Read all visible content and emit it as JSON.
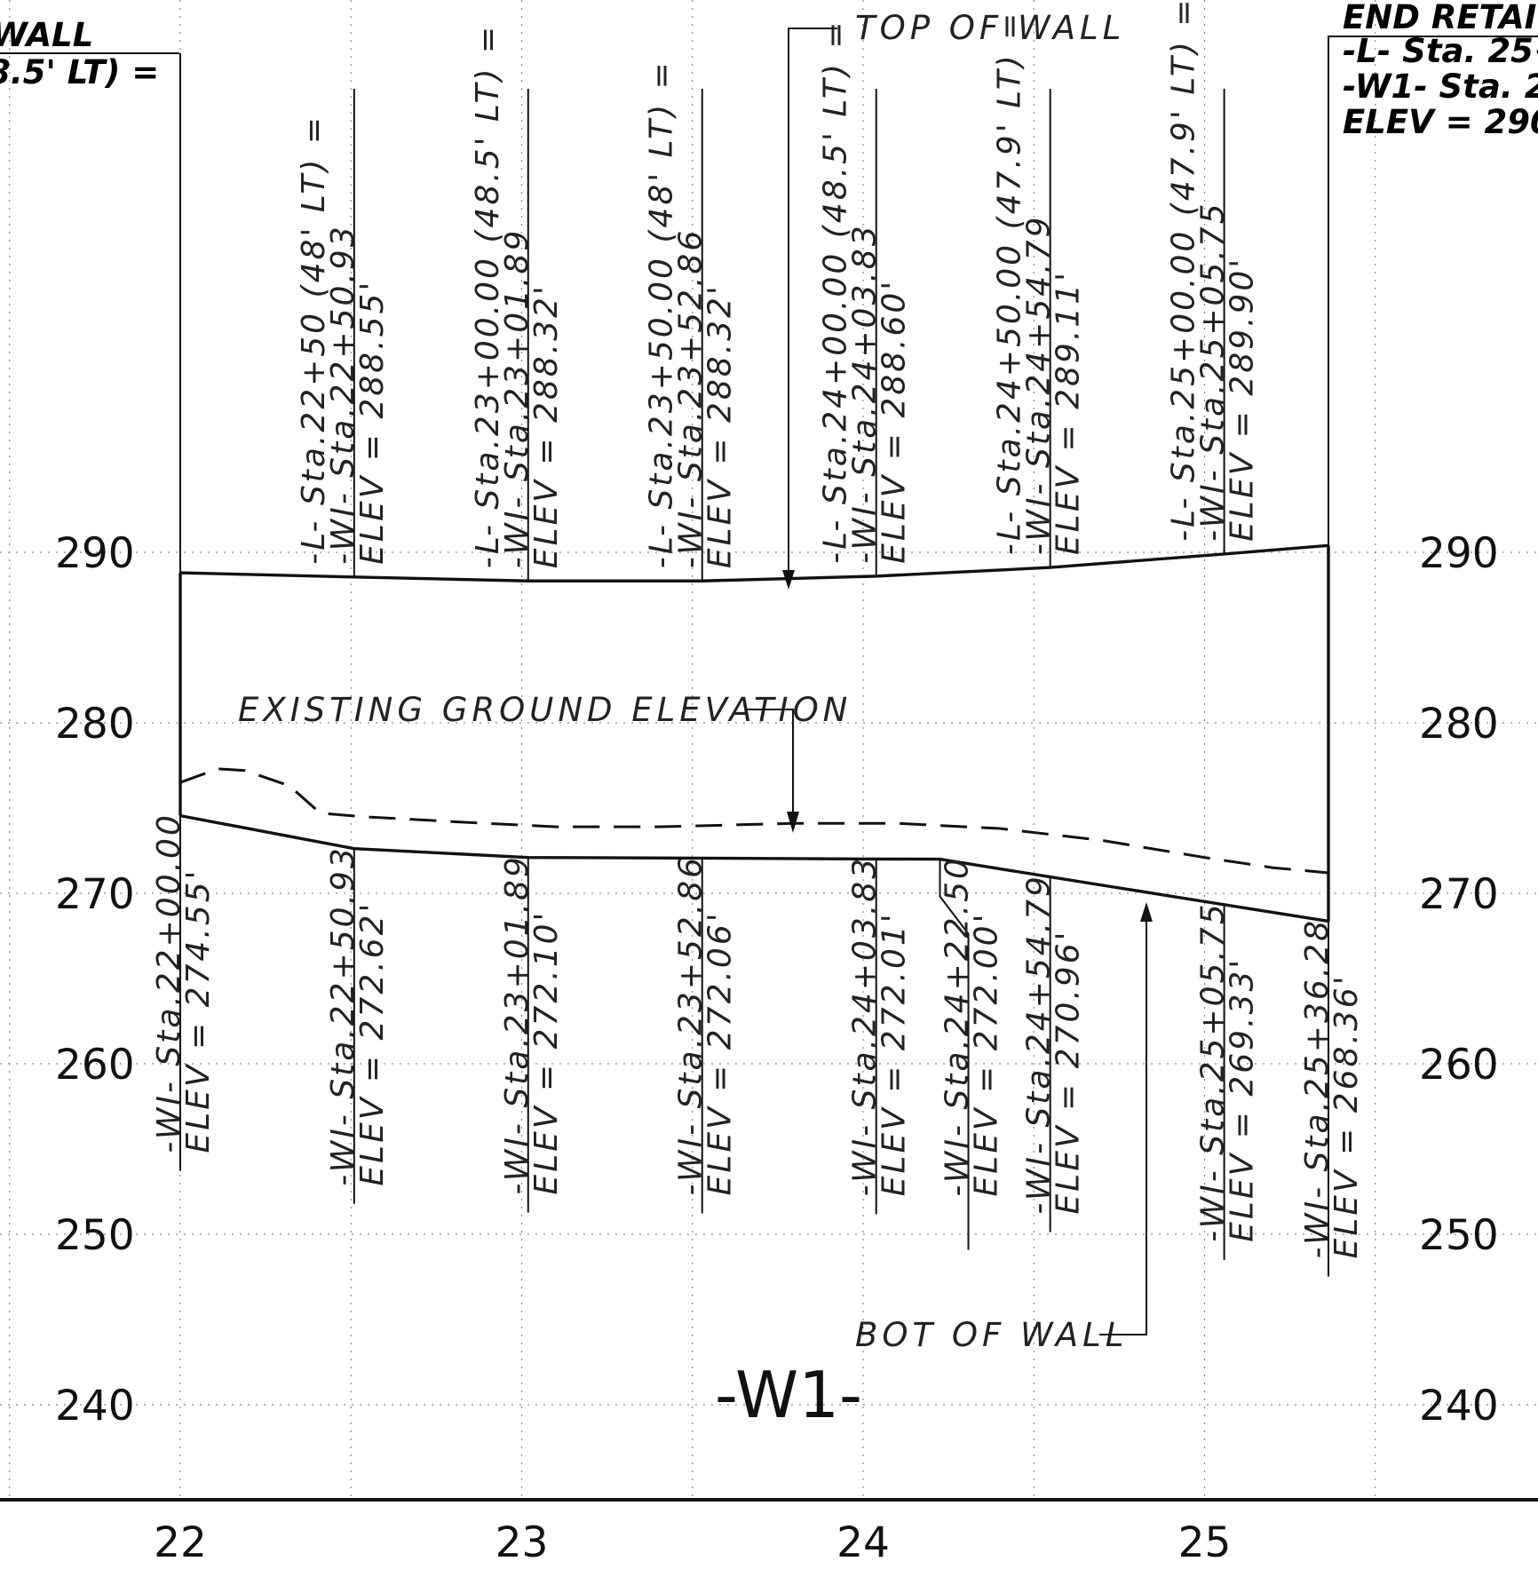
{
  "elevation_axis": {
    "labels": [
      "290",
      "280",
      "270",
      "260",
      "250",
      "240"
    ],
    "values": [
      290,
      280,
      270,
      260,
      250,
      240
    ]
  },
  "station_axis": {
    "labels": [
      "22",
      "23",
      "24",
      "25"
    ],
    "values": [
      22,
      23,
      24,
      25
    ]
  },
  "alignment_label": "-W1-",
  "notes": {
    "top_of_wall": "TOP OF WALL",
    "existing_ground": "EXISTING GROUND ELEVATION",
    "bot_of_wall": "BOT OF WALL"
  },
  "begin_wall": {
    "line1": "WALL",
    "line2": "8.5' LT) ="
  },
  "end_wall": {
    "line1": "END RETAI",
    "line2": "-L- Sta. 25+",
    "line3": "-W1- Sta. 2",
    "line4": "ELEV = 290"
  },
  "top_labels": [
    {
      "l": "-L-  Sta.22+50 (48' LT) =",
      "w": "-WI-  Sta.22+50.93",
      "e": "ELEV  =  288.55'"
    },
    {
      "l": "-L-  Sta.23+00.00 (48.5' LT) =",
      "w": "-WI-  Sta.23+01.89",
      "e": "ELEV  =  288.32'"
    },
    {
      "l": "-L-  Sta.23+50.00 (48' LT) =",
      "w": "-WI-  Sta.23+52.86",
      "e": "ELEV  =  288.32'"
    },
    {
      "l": "-L-  Sta.24+00.00 (48.5' LT) =",
      "w": "-WI-  Sta.24+03.83",
      "e": "ELEV  =  288.60'"
    },
    {
      "l": "-L-  Sta.24+50.00 (47.9' LT) =",
      "w": "-WI-  Sta.24+54.79",
      "e": "ELEV  =  289.11'"
    },
    {
      "l": "-L-  Sta.25+00.00 (47.9' LT) =",
      "w": "-WI-  Sta.25+05.75",
      "e": "ELEV  =  289.90'"
    }
  ],
  "bottom_labels": [
    {
      "w": "-WI-  Sta.22+00.00",
      "e": "ELEV  =  274.55'"
    },
    {
      "w": "-WI-  Sta.22+50.93",
      "e": "ELEV  =  272.62'"
    },
    {
      "w": "-WI-  Sta.23+01.89",
      "e": "ELEV  =  272.10'"
    },
    {
      "w": "-WI-  Sta.23+52.86",
      "e": "ELEV  =  272.06'"
    },
    {
      "w": "-WI-  Sta.24+03.83",
      "e": "ELEV  =  272.01'"
    },
    {
      "w": "-WI-  Sta.24+22.50",
      "e": "ELEV  =  272.00'"
    },
    {
      "w": "-WI-  Sta.24+54.79",
      "e": "ELEV  =  270.96'"
    },
    {
      "w": "-WI-  Sta.25+05.75",
      "e": "ELEV  =  269.33'"
    },
    {
      "w": "-WI-  Sta.25+36.28",
      "e": "ELEV  =  268.36'"
    }
  ],
  "chart_data": {
    "type": "line",
    "x_axis_unit": "station (100 ft)",
    "y_axis_unit": "elevation (ft)",
    "xlim": [
      21.47,
      25.9
    ],
    "ylim": [
      235.5,
      298
    ],
    "grid": true,
    "series": [
      {
        "name": "TOP OF WALL",
        "x": [
          22.0,
          22.5093,
          23.0189,
          23.5286,
          24.0383,
          24.5479,
          25.0575,
          25.3628
        ],
        "y": [
          288.8,
          288.55,
          288.32,
          288.32,
          288.6,
          289.11,
          289.9,
          290.4
        ]
      },
      {
        "name": "BOT OF WALL",
        "x": [
          22.0,
          22.5093,
          23.0189,
          23.5286,
          24.0383,
          24.225,
          24.5479,
          25.0575,
          25.3628
        ],
        "y": [
          274.55,
          272.62,
          272.1,
          272.06,
          272.01,
          272.0,
          270.96,
          269.33,
          268.36
        ]
      },
      {
        "name": "EXISTING GROUND ELEVATION",
        "x": [
          22.0,
          22.11,
          22.19,
          22.32,
          22.41,
          22.53,
          22.8,
          23.1,
          23.4,
          23.8,
          24.1,
          24.4,
          24.7,
          25.0,
          25.2,
          25.3628
        ],
        "y": [
          276.5,
          277.3,
          277.2,
          276.3,
          274.7,
          274.5,
          274.2,
          273.9,
          273.9,
          274.1,
          274.1,
          273.8,
          273.1,
          272.1,
          271.5,
          271.2
        ]
      }
    ]
  }
}
